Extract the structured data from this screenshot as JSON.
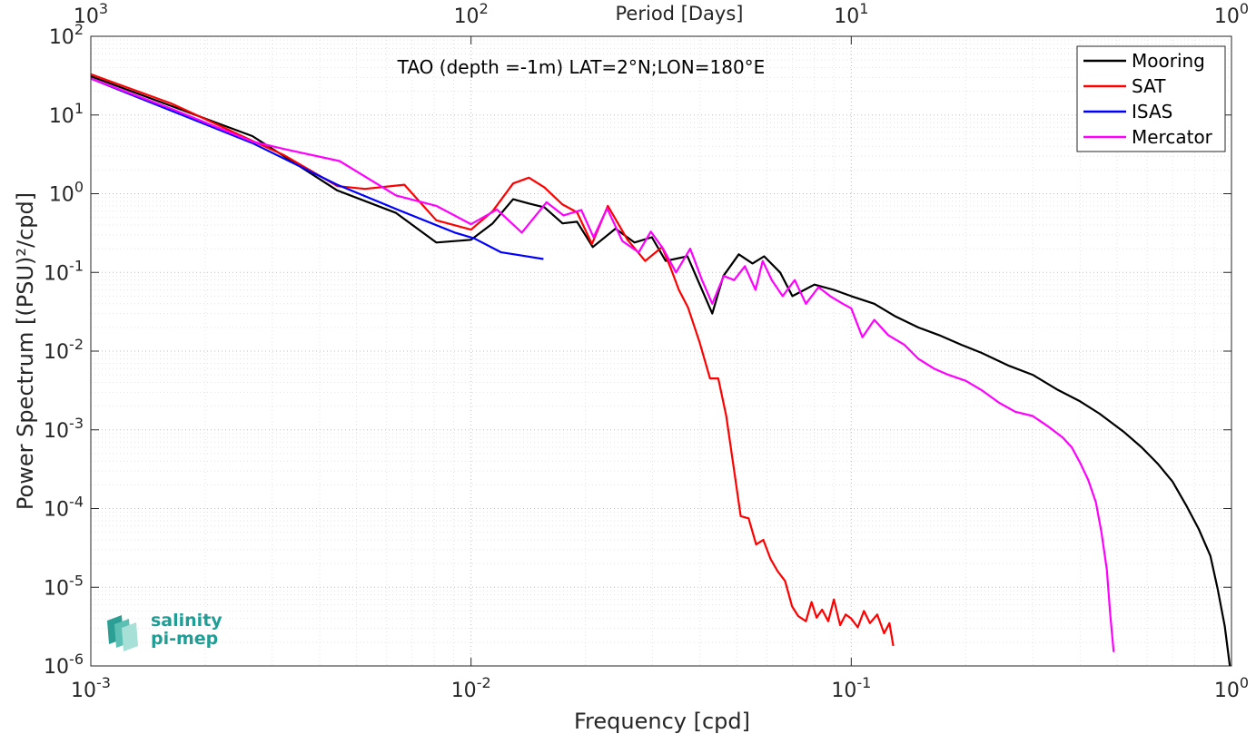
{
  "chart_data": {
    "type": "line",
    "title": "TAO (depth =-1m) LAT=2°N;LON=180°E",
    "xlabel": "Frequency [cpd]",
    "ylabel": "Power Spectrum [(PSU)²/cpd]",
    "top_axis_label": "Period [Days]",
    "xscale": "log",
    "yscale": "log",
    "xlim": [
      0.001,
      1
    ],
    "ylim": [
      1e-06,
      100
    ],
    "grid": true,
    "legend_position": "top-right",
    "x_ticks": [
      {
        "value": 0.001,
        "mantissa": "10",
        "exponent": "-3"
      },
      {
        "value": 0.01,
        "mantissa": "10",
        "exponent": "-2"
      },
      {
        "value": 0.1,
        "mantissa": "10",
        "exponent": "-1"
      },
      {
        "value": 1,
        "mantissa": "10",
        "exponent": "0"
      }
    ],
    "top_ticks": [
      {
        "value": 0.001,
        "mantissa": "10",
        "exponent": "3"
      },
      {
        "value": 0.01,
        "mantissa": "10",
        "exponent": "2"
      },
      {
        "value": 0.1,
        "mantissa": "10",
        "exponent": "1"
      },
      {
        "value": 1,
        "mantissa": "10",
        "exponent": "0"
      }
    ],
    "y_ticks": [
      {
        "value": 100,
        "mantissa": "10",
        "exponent": "2"
      },
      {
        "value": 10,
        "mantissa": "10",
        "exponent": "1"
      },
      {
        "value": 1,
        "mantissa": "10",
        "exponent": "0"
      },
      {
        "value": 0.1,
        "mantissa": "10",
        "exponent": "-1"
      },
      {
        "value": 0.01,
        "mantissa": "10",
        "exponent": "-2"
      },
      {
        "value": 0.001,
        "mantissa": "10",
        "exponent": "-3"
      },
      {
        "value": 0.0001,
        "mantissa": "10",
        "exponent": "-4"
      },
      {
        "value": 1e-05,
        "mantissa": "10",
        "exponent": "-5"
      },
      {
        "value": 1e-06,
        "mantissa": "10",
        "exponent": "-6"
      }
    ],
    "series": [
      {
        "name": "Mooring",
        "color": "#000000",
        "points": [
          [
            0.001,
            31
          ],
          [
            0.00163,
            13
          ],
          [
            0.00266,
            5.4
          ],
          [
            0.00322,
            3.0
          ],
          [
            0.00445,
            1.1
          ],
          [
            0.00635,
            0.57
          ],
          [
            0.0081,
            0.24
          ],
          [
            0.01,
            0.26
          ],
          [
            0.0114,
            0.42
          ],
          [
            0.0129,
            0.85
          ],
          [
            0.0142,
            0.75
          ],
          [
            0.0156,
            0.67
          ],
          [
            0.0174,
            0.42
          ],
          [
            0.019,
            0.44
          ],
          [
            0.0209,
            0.21
          ],
          [
            0.024,
            0.36
          ],
          [
            0.0269,
            0.24
          ],
          [
            0.0299,
            0.28
          ],
          [
            0.0325,
            0.14
          ],
          [
            0.0371,
            0.16
          ],
          [
            0.0431,
            0.03
          ],
          [
            0.0461,
            0.09
          ],
          [
            0.0506,
            0.17
          ],
          [
            0.055,
            0.13
          ],
          [
            0.059,
            0.16
          ],
          [
            0.065,
            0.1
          ],
          [
            0.07,
            0.05
          ],
          [
            0.08,
            0.07
          ],
          [
            0.09,
            0.06
          ],
          [
            0.1,
            0.05
          ],
          [
            0.115,
            0.04
          ],
          [
            0.13,
            0.028
          ],
          [
            0.15,
            0.02
          ],
          [
            0.17,
            0.016
          ],
          [
            0.195,
            0.012
          ],
          [
            0.22,
            0.0095
          ],
          [
            0.26,
            0.0065
          ],
          [
            0.3,
            0.005
          ],
          [
            0.35,
            0.0032
          ],
          [
            0.4,
            0.0023
          ],
          [
            0.45,
            0.0016
          ],
          [
            0.52,
            0.00095
          ],
          [
            0.58,
            0.0006
          ],
          [
            0.64,
            0.00037
          ],
          [
            0.7,
            0.00022
          ],
          [
            0.76,
            0.00011
          ],
          [
            0.82,
            5.5e-05
          ],
          [
            0.88,
            2.5e-05
          ],
          [
            0.92,
            9.5e-06
          ],
          [
            0.96,
            3.2e-06
          ],
          [
            0.99,
            1e-06
          ]
        ]
      },
      {
        "name": "SAT",
        "color": "#ff0000",
        "points": [
          [
            0.001,
            33
          ],
          [
            0.00163,
            14
          ],
          [
            0.00266,
            4.7
          ],
          [
            0.00322,
            3.1
          ],
          [
            0.00445,
            1.25
          ],
          [
            0.00526,
            1.15
          ],
          [
            0.00668,
            1.3
          ],
          [
            0.0081,
            0.46
          ],
          [
            0.01,
            0.35
          ],
          [
            0.0114,
            0.6
          ],
          [
            0.0129,
            1.35
          ],
          [
            0.0142,
            1.6
          ],
          [
            0.0156,
            1.2
          ],
          [
            0.0174,
            0.73
          ],
          [
            0.019,
            0.58
          ],
          [
            0.0208,
            0.23
          ],
          [
            0.0229,
            0.7
          ],
          [
            0.0258,
            0.26
          ],
          [
            0.0287,
            0.14
          ],
          [
            0.0318,
            0.21
          ],
          [
            0.0336,
            0.11
          ],
          [
            0.0352,
            0.06
          ],
          [
            0.0372,
            0.036
          ],
          [
            0.0399,
            0.013
          ],
          [
            0.0425,
            0.0045
          ],
          [
            0.0447,
            0.0045
          ],
          [
            0.0469,
            0.0015
          ],
          [
            0.0512,
            8e-05
          ],
          [
            0.0537,
            7.5e-05
          ],
          [
            0.0562,
            3.5e-05
          ],
          [
            0.0587,
            4e-05
          ],
          [
            0.0613,
            2.3e-05
          ],
          [
            0.064,
            1.6e-05
          ],
          [
            0.067,
            1.2e-05
          ],
          [
            0.0699,
            5.7e-06
          ],
          [
            0.0725,
            4.3e-06
          ],
          [
            0.076,
            3.7e-06
          ],
          [
            0.0786,
            6.5e-06
          ],
          [
            0.0811,
            4.1e-06
          ],
          [
            0.0838,
            5.2e-06
          ],
          [
            0.087,
            3.7e-06
          ],
          [
            0.09,
            7e-06
          ],
          [
            0.0935,
            3.3e-06
          ],
          [
            0.0967,
            4.5e-06
          ],
          [
            0.1,
            4e-06
          ],
          [
            0.104,
            3.1e-06
          ],
          [
            0.108,
            5e-06
          ],
          [
            0.112,
            3.5e-06
          ],
          [
            0.117,
            4.5e-06
          ],
          [
            0.122,
            2.6e-06
          ],
          [
            0.126,
            3.5e-06
          ],
          [
            0.129,
            1.8e-06
          ]
        ]
      },
      {
        "name": "ISAS",
        "color": "#0000ff",
        "points": [
          [
            0.001,
            29
          ],
          [
            0.00266,
            4.4
          ],
          [
            0.00445,
            1.3
          ],
          [
            0.00645,
            0.62
          ],
          [
            0.00907,
            0.32
          ],
          [
            0.0102,
            0.27
          ],
          [
            0.012,
            0.18
          ],
          [
            0.0135,
            0.165
          ],
          [
            0.0155,
            0.148
          ]
        ]
      },
      {
        "name": "Mercator",
        "color": "#ff00ff",
        "points": [
          [
            0.001,
            29
          ],
          [
            0.00163,
            12
          ],
          [
            0.00266,
            4.6
          ],
          [
            0.00322,
            3.7
          ],
          [
            0.00451,
            2.6
          ],
          [
            0.00635,
            0.95
          ],
          [
            0.0081,
            0.7
          ],
          [
            0.01,
            0.41
          ],
          [
            0.0117,
            0.63
          ],
          [
            0.0136,
            0.32
          ],
          [
            0.0158,
            0.78
          ],
          [
            0.0175,
            0.53
          ],
          [
            0.0195,
            0.62
          ],
          [
            0.021,
            0.28
          ],
          [
            0.0228,
            0.65
          ],
          [
            0.025,
            0.25
          ],
          [
            0.0276,
            0.18
          ],
          [
            0.0297,
            0.33
          ],
          [
            0.032,
            0.2
          ],
          [
            0.0346,
            0.1
          ],
          [
            0.0377,
            0.2
          ],
          [
            0.0405,
            0.08
          ],
          [
            0.0431,
            0.04
          ],
          [
            0.0462,
            0.09
          ],
          [
            0.0492,
            0.08
          ],
          [
            0.0525,
            0.12
          ],
          [
            0.056,
            0.06
          ],
          [
            0.0585,
            0.14
          ],
          [
            0.0618,
            0.08
          ],
          [
            0.066,
            0.05
          ],
          [
            0.071,
            0.08
          ],
          [
            0.076,
            0.04
          ],
          [
            0.082,
            0.065
          ],
          [
            0.088,
            0.05
          ],
          [
            0.095,
            0.04
          ],
          [
            0.1,
            0.035
          ],
          [
            0.107,
            0.015
          ],
          [
            0.115,
            0.025
          ],
          [
            0.125,
            0.016
          ],
          [
            0.138,
            0.012
          ],
          [
            0.15,
            0.008
          ],
          [
            0.165,
            0.006
          ],
          [
            0.18,
            0.005
          ],
          [
            0.2,
            0.0042
          ],
          [
            0.22,
            0.0032
          ],
          [
            0.245,
            0.0022
          ],
          [
            0.27,
            0.0017
          ],
          [
            0.3,
            0.0015
          ],
          [
            0.33,
            0.0011
          ],
          [
            0.36,
            0.0008
          ],
          [
            0.38,
            0.0006
          ],
          [
            0.4,
            0.00038
          ],
          [
            0.42,
            0.00023
          ],
          [
            0.44,
            0.00012
          ],
          [
            0.455,
            5e-05
          ],
          [
            0.47,
            1.7e-05
          ],
          [
            0.48,
            4.5e-06
          ],
          [
            0.49,
            1.5e-06
          ]
        ]
      }
    ]
  },
  "logo": {
    "line1": "salinity",
    "line2": "pi-mep"
  }
}
